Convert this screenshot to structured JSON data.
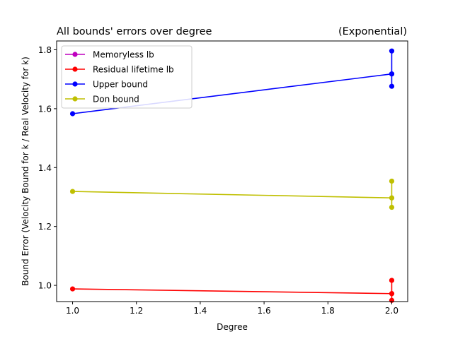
{
  "chart_data": {
    "type": "line",
    "title_left": "All bounds' errors over degree",
    "title_right": "(Exponential)",
    "xlabel": "Degree",
    "ylabel": "Bound Error (Velocity Bound for k / Real Velocity for k)",
    "xlim": [
      0.95,
      2.05
    ],
    "ylim": [
      0.945,
      1.83
    ],
    "xticks": [
      1.0,
      1.2,
      1.4,
      1.6,
      1.8,
      2.0
    ],
    "xtick_labels": [
      "1.0",
      "1.2",
      "1.4",
      "1.6",
      "1.8",
      "2.0"
    ],
    "yticks": [
      1.0,
      1.2,
      1.4,
      1.6,
      1.8
    ],
    "ytick_labels": [
      "1.0",
      "1.2",
      "1.4",
      "1.6",
      "1.8"
    ],
    "grid": false,
    "legend_position": "upper-left",
    "series": [
      {
        "name": "Memoryless lb",
        "color": "#bf00bf",
        "main": [],
        "range": []
      },
      {
        "name": "Residual lifetime lb",
        "color": "#ff0000",
        "main": [
          [
            1.0,
            0.988
          ],
          [
            2.0,
            0.972
          ]
        ],
        "range": [
          [
            2.0,
            1.017
          ],
          [
            2.0,
            0.972
          ],
          [
            2.0,
            0.949
          ]
        ]
      },
      {
        "name": "Upper bound",
        "color": "#0000ff",
        "main": [
          [
            1.0,
            1.583
          ],
          [
            2.0,
            1.718
          ]
        ],
        "range": [
          [
            2.0,
            1.796
          ],
          [
            2.0,
            1.718
          ],
          [
            2.0,
            1.676
          ]
        ]
      },
      {
        "name": "Don bound",
        "color": "#bfbf00",
        "main": [
          [
            1.0,
            1.319
          ],
          [
            2.0,
            1.297
          ]
        ],
        "range": [
          [
            2.0,
            1.354
          ],
          [
            2.0,
            1.297
          ],
          [
            2.0,
            1.265
          ]
        ]
      }
    ]
  }
}
